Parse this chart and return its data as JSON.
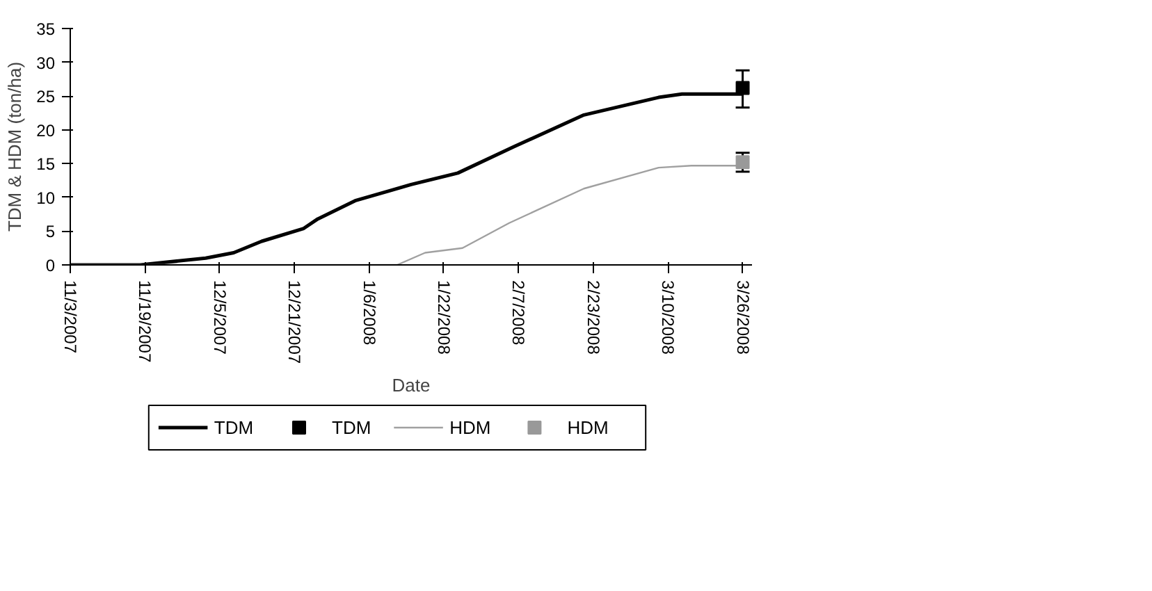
{
  "chart_data": {
    "type": "line",
    "xlabel": "Date",
    "ylabel": "TDM & HDM (ton/ha)",
    "xlim": [
      "2007-11-03",
      "2008-03-28"
    ],
    "ylim": [
      0,
      35
    ],
    "yticks": [
      0,
      5,
      10,
      15,
      20,
      25,
      30,
      35
    ],
    "xticks": [
      {
        "value": "2007-11-03",
        "label": "11/3/2007"
      },
      {
        "value": "2007-11-19",
        "label": "11/19/2007"
      },
      {
        "value": "2007-12-05",
        "label": "12/5/2007"
      },
      {
        "value": "2007-12-21",
        "label": "12/21/2007"
      },
      {
        "value": "2008-01-06",
        "label": "1/6/2008"
      },
      {
        "value": "2008-01-22",
        "label": "1/22/2008"
      },
      {
        "value": "2008-02-07",
        "label": "2/7/2008"
      },
      {
        "value": "2008-02-23",
        "label": "2/23/2008"
      },
      {
        "value": "2008-03-10",
        "label": "3/10/2008"
      },
      {
        "value": "2008-03-26",
        "label": "3/26/2008"
      }
    ],
    "grid": false,
    "legend": "bottom",
    "marker": "none",
    "line_style": "solid",
    "series": [
      {
        "name": "TDM",
        "type": "line",
        "color": "#000000",
        "x": [
          "2007-11-03",
          "2007-11-18",
          "2007-12-02",
          "2007-12-08",
          "2007-12-14",
          "2007-12-23",
          "2007-12-26",
          "2008-01-03",
          "2008-01-10",
          "2008-01-15",
          "2008-01-25",
          "2008-02-06",
          "2008-02-21",
          "2008-03-08",
          "2008-03-13",
          "2008-03-26"
        ],
        "values": [
          0,
          0,
          1.0,
          1.8,
          3.5,
          5.4,
          6.8,
          9.5,
          10.9,
          11.9,
          13.6,
          17.5,
          22.2,
          24.8,
          25.3,
          25.3
        ]
      },
      {
        "name": "TDM",
        "type": "scatter",
        "marker": "square",
        "color": "#000000",
        "x": [
          "2008-03-26"
        ],
        "values": [
          26.2
        ],
        "errors": [
          [
            23.3,
            28.8
          ]
        ]
      },
      {
        "name": "HDM",
        "type": "line",
        "color": "#a0a0a0",
        "x": [
          "2007-11-03",
          "2008-01-12",
          "2008-01-18",
          "2008-01-26",
          "2008-02-05",
          "2008-02-21",
          "2008-03-08",
          "2008-03-15",
          "2008-03-26"
        ],
        "values": [
          0,
          0,
          1.8,
          2.5,
          6.2,
          11.3,
          14.4,
          14.7,
          14.7
        ]
      },
      {
        "name": "HDM",
        "type": "scatter",
        "marker": "square",
        "color": "#999999",
        "x": [
          "2008-03-26"
        ],
        "values": [
          15.2
        ],
        "errors": [
          [
            13.8,
            16.6
          ]
        ]
      }
    ]
  }
}
